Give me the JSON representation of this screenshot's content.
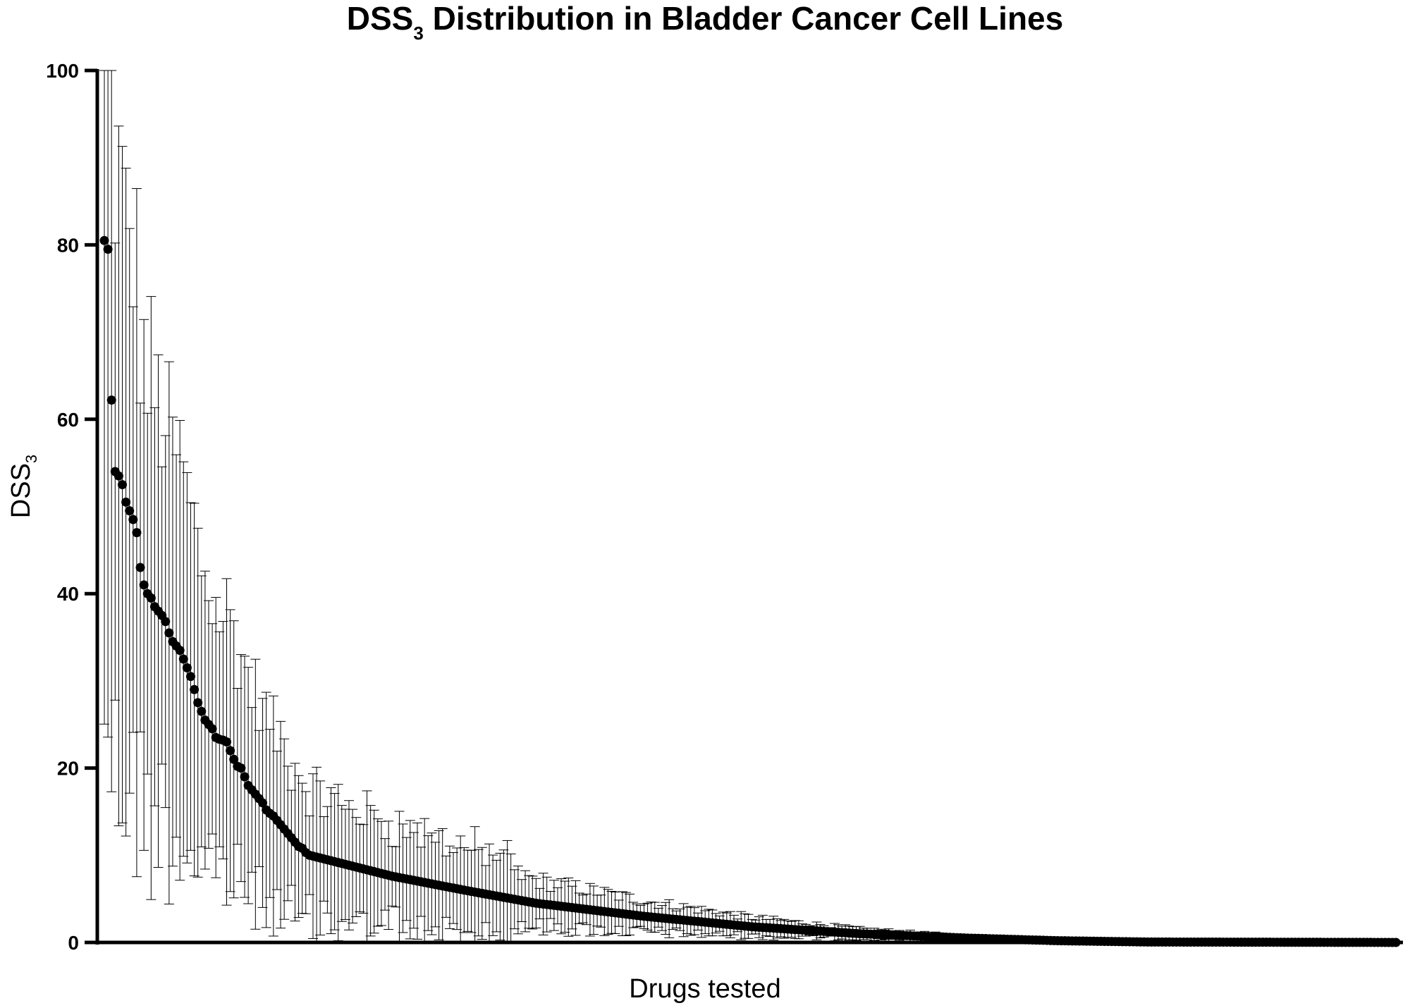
{
  "chart_data": {
    "type": "scatter",
    "title": {
      "main_prefix": "DSS",
      "main_subscript": "3",
      "main_suffix": " Distribution in Bladder Cancer Cell Lines"
    },
    "xlabel": "Drugs tested",
    "ylabel": {
      "base": "DSS",
      "subscript": "3"
    },
    "ylim": [
      0,
      100
    ],
    "yticks": [
      "0",
      "20",
      "40",
      "60",
      "80",
      "100"
    ],
    "x_tick_labels": [],
    "grid": false,
    "legend": "none",
    "n_points": 360,
    "series": [
      {
        "error_bars": "±1 SD",
        "marker_color": "#000000",
        "top_values": [
          80.5,
          79.5,
          62.2,
          54.0,
          53.5,
          52.5,
          50.5,
          49.5,
          48.5,
          47.0,
          43.0,
          41.0,
          40.0,
          39.5,
          38.5,
          38.0,
          37.5,
          36.8,
          35.5,
          34.5,
          34.0,
          33.5,
          32.5,
          31.5,
          30.5,
          29.0,
          27.5,
          26.5,
          25.5,
          25.0,
          24.5,
          23.5,
          23.3,
          23.2,
          23.0,
          22.0,
          21.0,
          20.2,
          20.0,
          19.0,
          18.0,
          17.5,
          17.0,
          16.5,
          16.0,
          15.2,
          14.8,
          14.5,
          14.0,
          13.5,
          13.0,
          12.5,
          12.0,
          11.5,
          11.0,
          10.8,
          10.3,
          10.0
        ],
        "tail": {
          "start_value": 10.0,
          "knots": [
            {
              "index": 80,
              "value": 7.6
            },
            {
              "index": 100,
              "value": 6.0
            },
            {
              "index": 120,
              "value": 4.5
            },
            {
              "index": 150,
              "value": 3.0
            },
            {
              "index": 180,
              "value": 1.8
            },
            {
              "index": 210,
              "value": 1.0
            },
            {
              "index": 240,
              "value": 0.5
            },
            {
              "index": 265,
              "value": 0.2
            },
            {
              "index": 290,
              "value": 0.05
            },
            {
              "index": 359,
              "value": 0.0
            }
          ]
        }
      }
    ]
  }
}
